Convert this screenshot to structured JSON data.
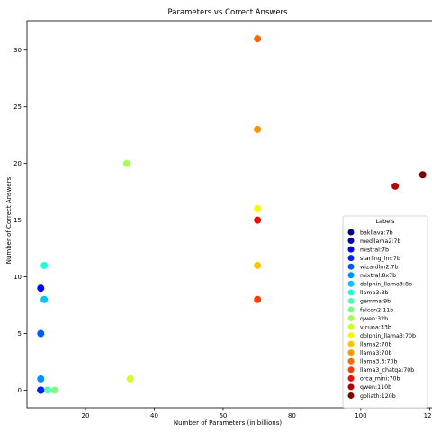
{
  "chart_data": {
    "type": "scatter",
    "title": "Parameters vs Correct Answers",
    "xlabel": "Number of Parameters (in billions)",
    "ylabel": "Number of Correct Answers",
    "xlim": [
      3,
      122
    ],
    "ylim": [
      -1.55,
      32.6
    ],
    "xticks": [
      20,
      40,
      60,
      80,
      100,
      120
    ],
    "yticks": [
      0,
      5,
      10,
      15,
      20,
      25,
      30
    ],
    "grid": false,
    "legend": {
      "title": "Labels",
      "position": "lower-right"
    },
    "series": [
      {
        "name": "bakllava:7b",
        "color": "#00007f",
        "x": 7,
        "y": 0
      },
      {
        "name": "medllama2:7b",
        "color": "#0000b6",
        "x": 7,
        "y": 0
      },
      {
        "name": "mistral:7b",
        "color": "#0000f1",
        "x": 7,
        "y": 9
      },
      {
        "name": "starling_lm:7b",
        "color": "#0020ff",
        "x": 7,
        "y": 0
      },
      {
        "name": "wizardlm2:7b",
        "color": "#0058ff",
        "x": 7,
        "y": 5
      },
      {
        "name": "mixtral:8x7b",
        "color": "#0090ff",
        "x": 7,
        "y": 1
      },
      {
        "name": "dolphin_llama3:8b",
        "color": "#00c4ff",
        "x": 8,
        "y": 8
      },
      {
        "name": "llama3:8b",
        "color": "#1fffd7",
        "x": 8,
        "y": 11
      },
      {
        "name": "gemma:9b",
        "color": "#4dffaa",
        "x": 9,
        "y": 0
      },
      {
        "name": "falcon2:11b",
        "color": "#7aff7d",
        "x": 11,
        "y": 0
      },
      {
        "name": "qwen:32b",
        "color": "#a4ff53",
        "x": 32,
        "y": 20
      },
      {
        "name": "vicuna:33b",
        "color": "#ceff29",
        "x": 33,
        "y": 1
      },
      {
        "name": "dolphin_llama3:70b",
        "color": "#f4f802",
        "x": 70,
        "y": 16
      },
      {
        "name": "llama2:70b",
        "color": "#ffc400",
        "x": 70,
        "y": 11
      },
      {
        "name": "llama3:70b",
        "color": "#ff9400",
        "x": 70,
        "y": 23
      },
      {
        "name": "llama3.3:70b",
        "color": "#ff6800",
        "x": 70,
        "y": 31
      },
      {
        "name": "llama3_chatqa:70b",
        "color": "#ff3b00",
        "x": 70,
        "y": 8
      },
      {
        "name": "orca_mini:70b",
        "color": "#e80f00",
        "x": 70,
        "y": 15
      },
      {
        "name": "qwen:110b",
        "color": "#b20000",
        "x": 110,
        "y": 18
      },
      {
        "name": "goliath:120b",
        "color": "#7f0000",
        "x": 118,
        "y": 19
      }
    ]
  }
}
